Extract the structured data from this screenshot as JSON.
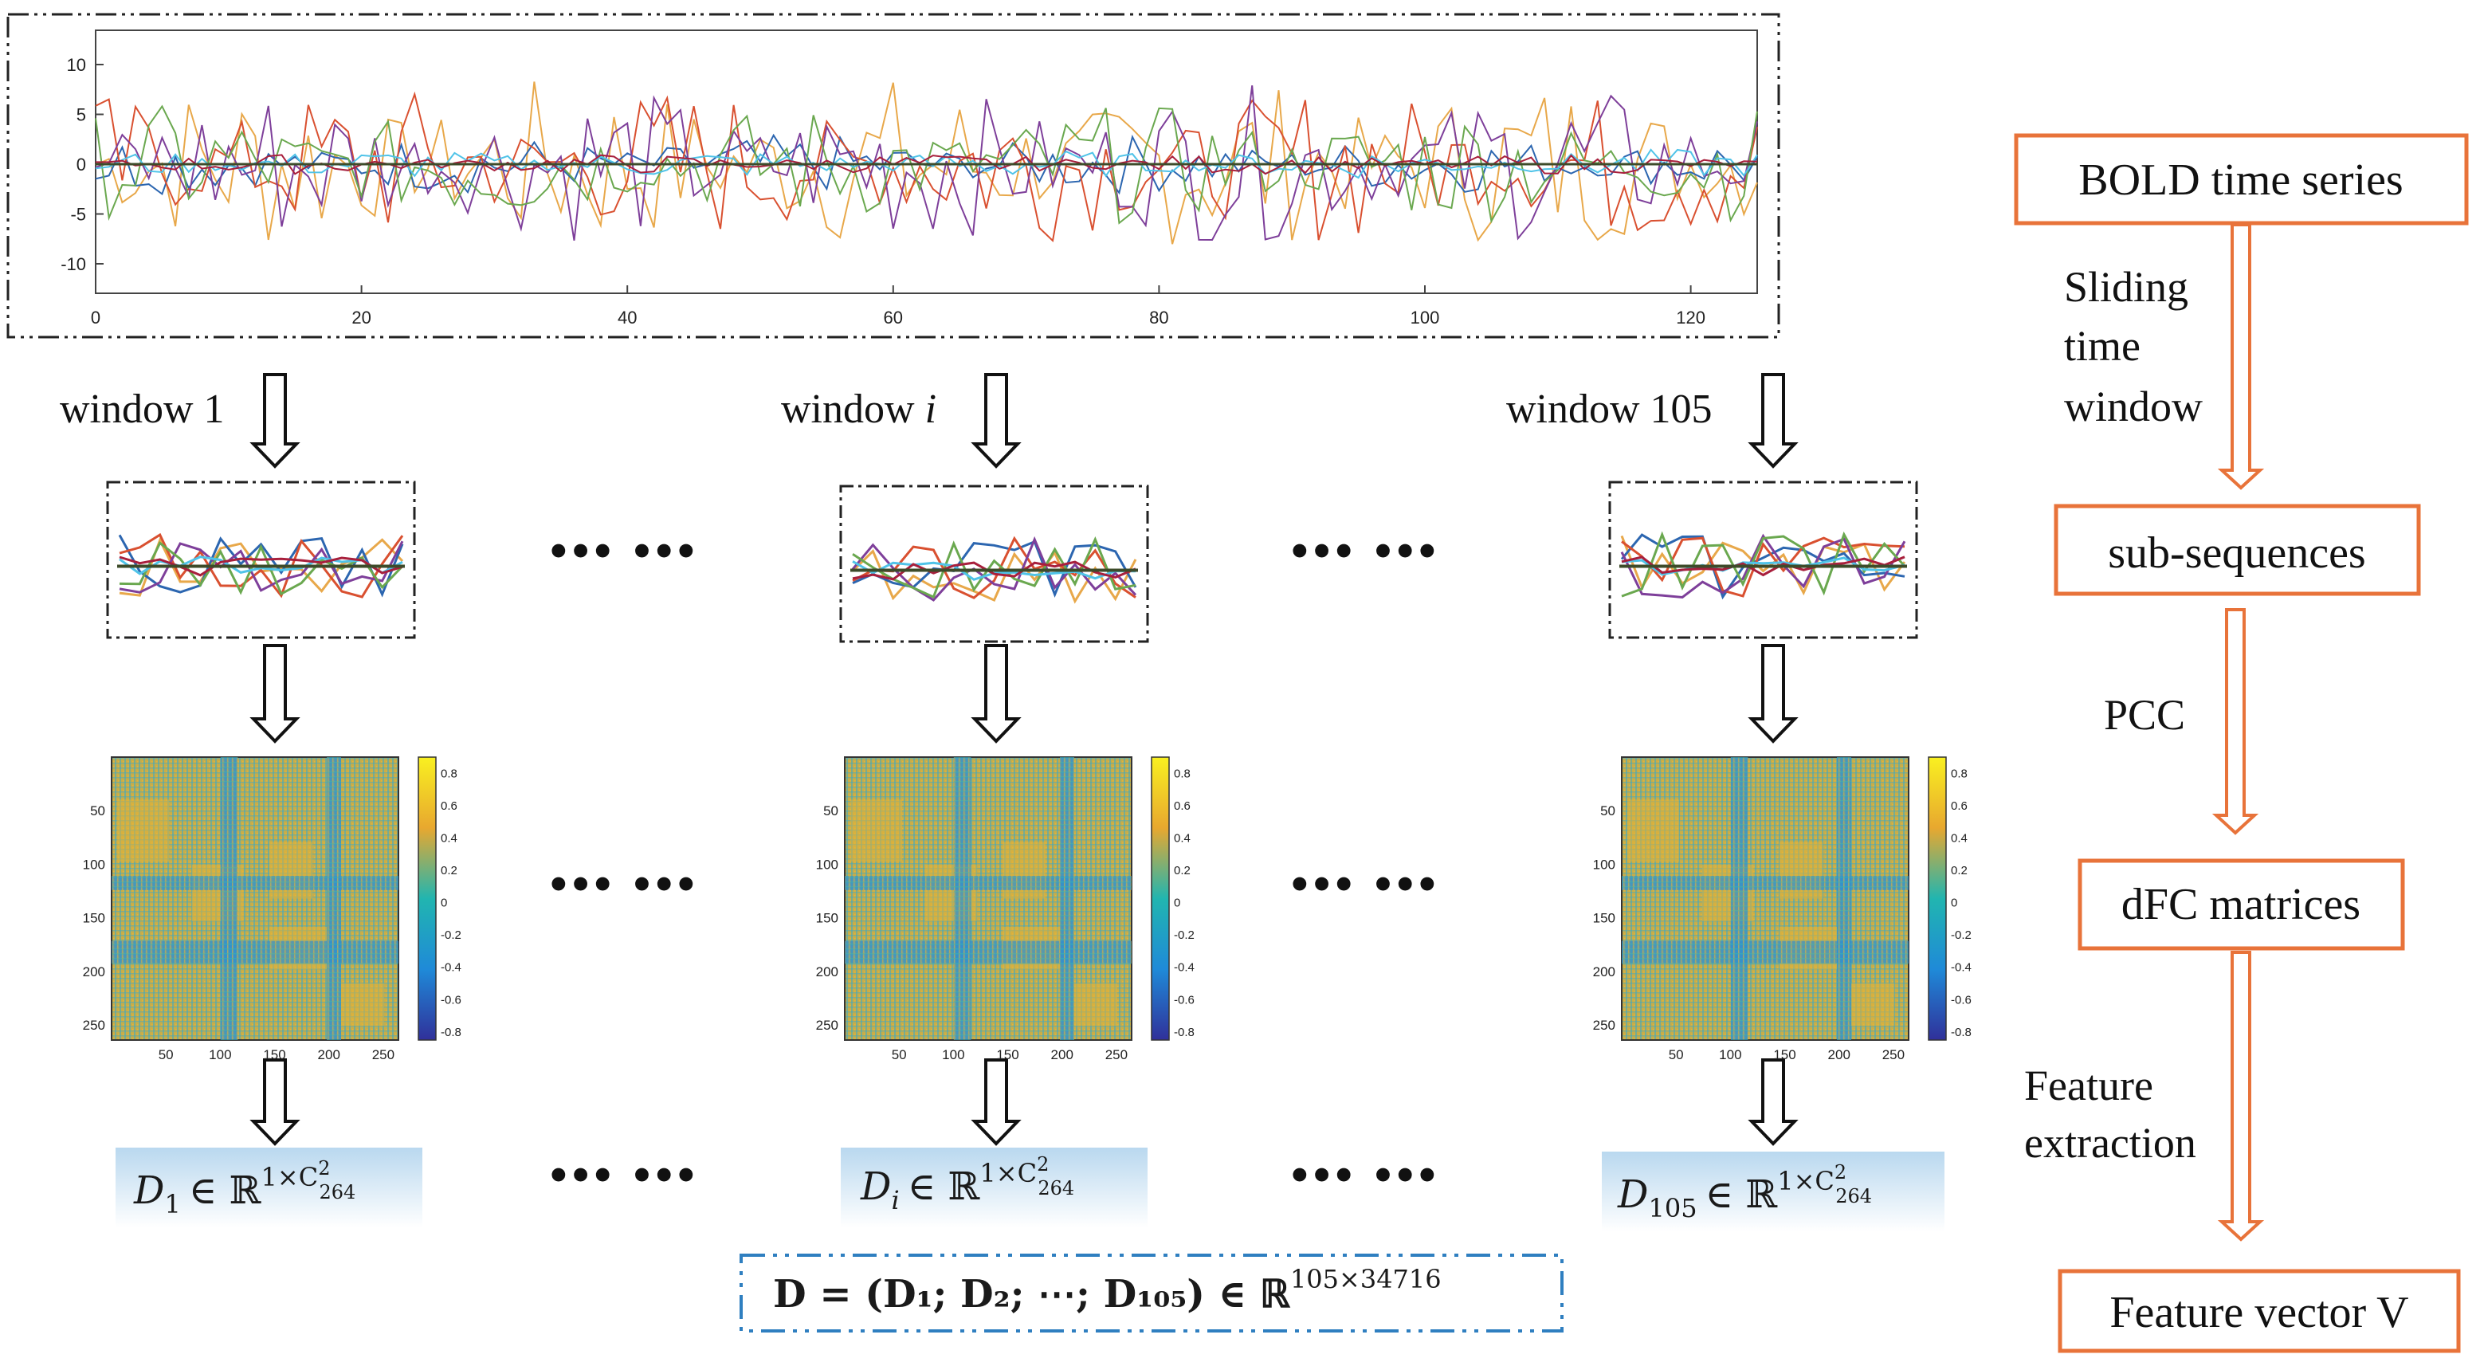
{
  "top_plot": {
    "y_ticks": [
      "10",
      "5",
      "0",
      "-5",
      "-10"
    ],
    "x_ticks": [
      "0",
      "20",
      "40",
      "60",
      "80",
      "100",
      "120"
    ],
    "series_colors": [
      "#e8a84a",
      "#2c66b0",
      "#d95030",
      "#7e3f9a",
      "#6aa84f",
      "#4fc3e8",
      "#a81f3c"
    ]
  },
  "windows": [
    {
      "label": "window 1",
      "label_main": "window 1",
      "label_italic": ""
    },
    {
      "label": "window i",
      "label_main": "window ",
      "label_italic": "i"
    },
    {
      "label": "window 105",
      "label_main": "window 105",
      "label_italic": ""
    }
  ],
  "ellipsis": "••• •••",
  "matrix": {
    "y_ticks": [
      "50",
      "100",
      "150",
      "200",
      "250"
    ],
    "x_ticks": [
      "50",
      "100",
      "150",
      "200",
      "250"
    ],
    "colorbar_ticks": [
      "0.8",
      "0.6",
      "0.4",
      "0.2",
      "0",
      "-0.2",
      "-0.4",
      "-0.6",
      "-0.8"
    ]
  },
  "formulas": [
    {
      "base": "D",
      "sub": "1",
      "member": "∈ ℝ",
      "sup": "1×C",
      "c_sup": "2",
      "c_sub": "264"
    },
    {
      "base": "D",
      "sub": "i",
      "member": "∈ ℝ",
      "sup": "1×C",
      "c_sup": "2",
      "c_sub": "264"
    },
    {
      "base": "D",
      "sub": "105",
      "member": "∈ ℝ",
      "sup": "1×C",
      "c_sup": "2",
      "c_sub": "264"
    }
  ],
  "final_formula": {
    "text": "D = (D₁; D₂; ⋯; D₁₀₅) ∈ ℝ",
    "sup": "105×34716"
  },
  "flow": {
    "boxes": [
      "BOLD time series",
      "sub-sequences",
      "dFC  matrices",
      "Feature  vector V"
    ],
    "step1": [
      "Sliding",
      "time",
      "window"
    ],
    "step2": [
      "PCC"
    ],
    "step3": [
      "Feature",
      "extraction"
    ]
  },
  "colors": {
    "flow_orange": "#e8733a",
    "formula_bg": "#b9d8ef",
    "dashed_blue": "#2f7fc0"
  }
}
